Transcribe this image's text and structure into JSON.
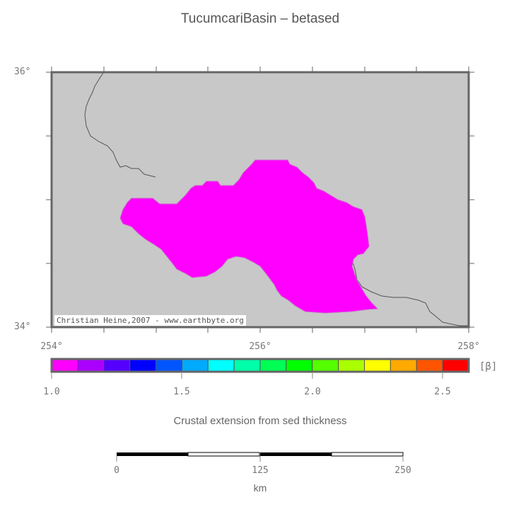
{
  "title": "TucumcariBasin – betased",
  "map": {
    "lat_labels": [
      "36°",
      "34°"
    ],
    "lon_labels": [
      "254°",
      "256°",
      "258°"
    ],
    "credit": "Christian Heine,2007 - www.earthbyte.org",
    "colors": {
      "ocean": "#c8c8c8",
      "basin": "#ff00ff",
      "coast": "#555555",
      "frame": "#666666"
    }
  },
  "colorbar": {
    "colors": [
      "#ff00ff",
      "#aa00ff",
      "#5500ff",
      "#0000ff",
      "#0055ff",
      "#00aaff",
      "#00ffff",
      "#00ffaa",
      "#00ff55",
      "#00ff00",
      "#55ff00",
      "#aaff00",
      "#ffff00",
      "#ffaa00",
      "#ff5500",
      "#ff0000"
    ],
    "tick_labels": [
      "1.0",
      "1.5",
      "2.0",
      "2.5"
    ],
    "unit": "[β]"
  },
  "caption": "Crustal extension from sed thickness",
  "scalebar": {
    "tick_labels": [
      "0",
      "125",
      "250"
    ],
    "unit": "km"
  }
}
